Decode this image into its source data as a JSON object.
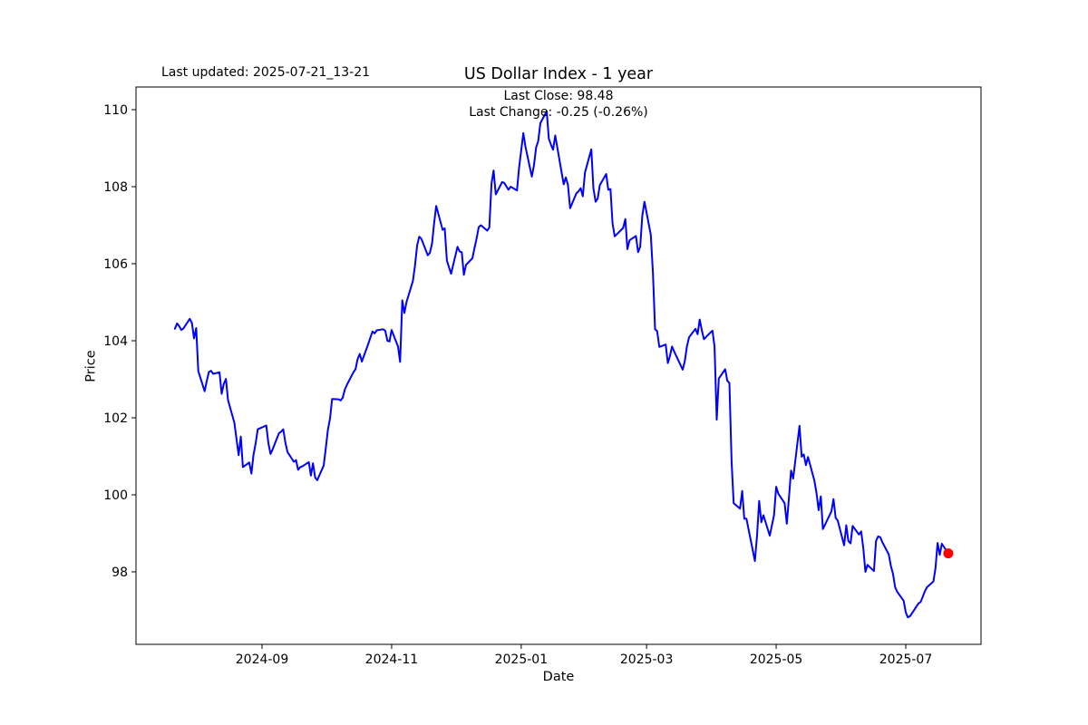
{
  "figure": {
    "background": "#ffffff",
    "text_color": "#000000",
    "title": "US Dollar Index - 1 year",
    "last_updated_label": "Last updated: 2025-07-21_13-21",
    "annotation_line1": "Last Close: 98.48",
    "annotation_line2": "Last Change: -0.25 (-0.26%)",
    "xlabel": "Date",
    "ylabel": "Price"
  },
  "chart_data": {
    "type": "line",
    "title": "US Dollar Index - 1 year",
    "xlabel": "Date",
    "ylabel": "Price",
    "series_name": "US Dollar Index",
    "line_color": "#0000ff",
    "marker_color": "#ff0000",
    "last_close": 98.48,
    "last_change": -0.25,
    "last_change_pct": "-0.26%",
    "grid": false,
    "legend_position": "none",
    "x_ticks": [
      "2024-09",
      "2024-11",
      "2025-01",
      "2025-03",
      "2025-05",
      "2025-07"
    ],
    "y_ticks": [
      98,
      100,
      102,
      104,
      106,
      108,
      110
    ],
    "ylim": [
      96.1,
      110.6
    ],
    "xlim": [
      "2024-07-04",
      "2025-08-05"
    ],
    "points": [
      [
        "2024-07-22",
        104.31
      ],
      [
        "2024-07-23",
        104.45
      ],
      [
        "2024-07-24",
        104.38
      ],
      [
        "2024-07-25",
        104.28
      ],
      [
        "2024-07-26",
        104.32
      ],
      [
        "2024-07-29",
        104.57
      ],
      [
        "2024-07-30",
        104.46
      ],
      [
        "2024-07-31",
        104.06
      ],
      [
        "2024-08-01",
        104.33
      ],
      [
        "2024-08-02",
        103.21
      ],
      [
        "2024-08-05",
        102.69
      ],
      [
        "2024-08-06",
        102.96
      ],
      [
        "2024-08-07",
        103.19
      ],
      [
        "2024-08-08",
        103.22
      ],
      [
        "2024-08-09",
        103.14
      ],
      [
        "2024-08-12",
        103.18
      ],
      [
        "2024-08-13",
        102.62
      ],
      [
        "2024-08-14",
        102.88
      ],
      [
        "2024-08-15",
        103.01
      ],
      [
        "2024-08-16",
        102.46
      ],
      [
        "2024-08-19",
        101.87
      ],
      [
        "2024-08-20",
        101.44
      ],
      [
        "2024-08-21",
        101.03
      ],
      [
        "2024-08-22",
        101.51
      ],
      [
        "2024-08-23",
        100.72
      ],
      [
        "2024-08-26",
        100.84
      ],
      [
        "2024-08-27",
        100.55
      ],
      [
        "2024-08-28",
        101.04
      ],
      [
        "2024-08-29",
        101.34
      ],
      [
        "2024-08-30",
        101.7
      ],
      [
        "2024-09-03",
        101.8
      ],
      [
        "2024-09-04",
        101.34
      ],
      [
        "2024-09-05",
        101.06
      ],
      [
        "2024-09-06",
        101.18
      ],
      [
        "2024-09-09",
        101.6
      ],
      [
        "2024-09-10",
        101.64
      ],
      [
        "2024-09-11",
        101.7
      ],
      [
        "2024-09-12",
        101.35
      ],
      [
        "2024-09-13",
        101.11
      ],
      [
        "2024-09-16",
        100.86
      ],
      [
        "2024-09-17",
        100.9
      ],
      [
        "2024-09-18",
        100.65
      ],
      [
        "2024-09-19",
        100.72
      ],
      [
        "2024-09-20",
        100.74
      ],
      [
        "2024-09-23",
        100.85
      ],
      [
        "2024-09-24",
        100.5
      ],
      [
        "2024-09-25",
        100.82
      ],
      [
        "2024-09-26",
        100.45
      ],
      [
        "2024-09-27",
        100.38
      ],
      [
        "2024-09-30",
        100.76
      ],
      [
        "2024-10-01",
        101.2
      ],
      [
        "2024-10-02",
        101.68
      ],
      [
        "2024-10-03",
        101.98
      ],
      [
        "2024-10-04",
        102.49
      ],
      [
        "2024-10-07",
        102.48
      ],
      [
        "2024-10-08",
        102.45
      ],
      [
        "2024-10-09",
        102.52
      ],
      [
        "2024-10-10",
        102.74
      ],
      [
        "2024-10-11",
        102.86
      ],
      [
        "2024-10-14",
        103.18
      ],
      [
        "2024-10-15",
        103.26
      ],
      [
        "2024-10-16",
        103.52
      ],
      [
        "2024-10-17",
        103.66
      ],
      [
        "2024-10-18",
        103.46
      ],
      [
        "2024-10-21",
        103.92
      ],
      [
        "2024-10-22",
        104.08
      ],
      [
        "2024-10-23",
        104.24
      ],
      [
        "2024-10-24",
        104.19
      ],
      [
        "2024-10-25",
        104.27
      ],
      [
        "2024-10-28",
        104.3
      ],
      [
        "2024-10-29",
        104.26
      ],
      [
        "2024-10-30",
        104.0
      ],
      [
        "2024-10-31",
        103.98
      ],
      [
        "2024-11-01",
        104.28
      ],
      [
        "2024-11-04",
        103.85
      ],
      [
        "2024-11-05",
        103.45
      ],
      [
        "2024-11-06",
        105.05
      ],
      [
        "2024-11-07",
        104.72
      ],
      [
        "2024-11-08",
        105.0
      ],
      [
        "2024-11-11",
        105.55
      ],
      [
        "2024-11-12",
        105.95
      ],
      [
        "2024-11-13",
        106.48
      ],
      [
        "2024-11-14",
        106.7
      ],
      [
        "2024-11-15",
        106.65
      ],
      [
        "2024-11-18",
        106.22
      ],
      [
        "2024-11-19",
        106.28
      ],
      [
        "2024-11-20",
        106.52
      ],
      [
        "2024-11-21",
        107.05
      ],
      [
        "2024-11-22",
        107.5
      ],
      [
        "2024-11-25",
        106.88
      ],
      [
        "2024-11-26",
        106.92
      ],
      [
        "2024-11-27",
        106.08
      ],
      [
        "2024-11-29",
        105.74
      ],
      [
        "2024-12-02",
        106.44
      ],
      [
        "2024-12-03",
        106.32
      ],
      [
        "2024-12-04",
        106.3
      ],
      [
        "2024-12-05",
        105.71
      ],
      [
        "2024-12-06",
        105.97
      ],
      [
        "2024-12-09",
        106.14
      ],
      [
        "2024-12-10",
        106.4
      ],
      [
        "2024-12-11",
        106.66
      ],
      [
        "2024-12-12",
        106.95
      ],
      [
        "2024-12-13",
        107.0
      ],
      [
        "2024-12-16",
        106.86
      ],
      [
        "2024-12-17",
        106.94
      ],
      [
        "2024-12-18",
        108.08
      ],
      [
        "2024-12-19",
        108.42
      ],
      [
        "2024-12-20",
        107.8
      ],
      [
        "2024-12-23",
        108.12
      ],
      [
        "2024-12-24",
        108.1
      ],
      [
        "2024-12-26",
        107.92
      ],
      [
        "2024-12-27",
        108.0
      ],
      [
        "2024-12-30",
        107.9
      ],
      [
        "2024-12-31",
        108.49
      ],
      [
        "2025-01-02",
        109.39
      ],
      [
        "2025-01-03",
        109.03
      ],
      [
        "2025-01-06",
        108.26
      ],
      [
        "2025-01-07",
        108.55
      ],
      [
        "2025-01-08",
        109.02
      ],
      [
        "2025-01-09",
        109.18
      ],
      [
        "2025-01-10",
        109.65
      ],
      [
        "2025-01-13",
        109.96
      ],
      [
        "2025-01-14",
        109.25
      ],
      [
        "2025-01-15",
        109.09
      ],
      [
        "2025-01-16",
        108.96
      ],
      [
        "2025-01-17",
        109.33
      ],
      [
        "2025-01-21",
        108.06
      ],
      [
        "2025-01-22",
        108.24
      ],
      [
        "2025-01-23",
        108.05
      ],
      [
        "2025-01-24",
        107.44
      ],
      [
        "2025-01-27",
        107.83
      ],
      [
        "2025-01-28",
        107.88
      ],
      [
        "2025-01-29",
        107.96
      ],
      [
        "2025-01-30",
        107.75
      ],
      [
        "2025-01-31",
        108.37
      ],
      [
        "2025-02-03",
        108.97
      ],
      [
        "2025-02-04",
        107.96
      ],
      [
        "2025-02-05",
        107.61
      ],
      [
        "2025-02-06",
        107.69
      ],
      [
        "2025-02-07",
        108.04
      ],
      [
        "2025-02-10",
        108.33
      ],
      [
        "2025-02-11",
        107.92
      ],
      [
        "2025-02-12",
        107.94
      ],
      [
        "2025-02-13",
        107.05
      ],
      [
        "2025-02-14",
        106.71
      ],
      [
        "2025-02-18",
        106.93
      ],
      [
        "2025-02-19",
        107.16
      ],
      [
        "2025-02-20",
        106.38
      ],
      [
        "2025-02-21",
        106.61
      ],
      [
        "2025-02-24",
        106.72
      ],
      [
        "2025-02-25",
        106.3
      ],
      [
        "2025-02-26",
        106.44
      ],
      [
        "2025-02-27",
        107.24
      ],
      [
        "2025-02-28",
        107.61
      ],
      [
        "2025-03-03",
        106.75
      ],
      [
        "2025-03-04",
        105.74
      ],
      [
        "2025-03-05",
        104.3
      ],
      [
        "2025-03-06",
        104.25
      ],
      [
        "2025-03-07",
        103.84
      ],
      [
        "2025-03-10",
        103.9
      ],
      [
        "2025-03-11",
        103.42
      ],
      [
        "2025-03-12",
        103.6
      ],
      [
        "2025-03-13",
        103.85
      ],
      [
        "2025-03-14",
        103.72
      ],
      [
        "2025-03-17",
        103.37
      ],
      [
        "2025-03-18",
        103.25
      ],
      [
        "2025-03-19",
        103.47
      ],
      [
        "2025-03-20",
        103.85
      ],
      [
        "2025-03-21",
        104.09
      ],
      [
        "2025-03-24",
        104.31
      ],
      [
        "2025-03-25",
        104.17
      ],
      [
        "2025-03-26",
        104.55
      ],
      [
        "2025-03-27",
        104.28
      ],
      [
        "2025-03-28",
        104.04
      ],
      [
        "2025-03-31",
        104.21
      ],
      [
        "2025-04-01",
        104.26
      ],
      [
        "2025-04-02",
        103.85
      ],
      [
        "2025-04-03",
        101.95
      ],
      [
        "2025-04-04",
        103.02
      ],
      [
        "2025-04-07",
        103.26
      ],
      [
        "2025-04-08",
        102.96
      ],
      [
        "2025-04-09",
        102.9
      ],
      [
        "2025-04-10",
        100.87
      ],
      [
        "2025-04-11",
        99.78
      ],
      [
        "2025-04-14",
        99.64
      ],
      [
        "2025-04-15",
        100.1
      ],
      [
        "2025-04-16",
        99.38
      ],
      [
        "2025-04-17",
        99.38
      ],
      [
        "2025-04-21",
        98.28
      ],
      [
        "2025-04-22",
        98.95
      ],
      [
        "2025-04-23",
        99.84
      ],
      [
        "2025-04-24",
        99.29
      ],
      [
        "2025-04-25",
        99.47
      ],
      [
        "2025-04-28",
        98.94
      ],
      [
        "2025-04-29",
        99.21
      ],
      [
        "2025-04-30",
        99.47
      ],
      [
        "2025-05-01",
        100.21
      ],
      [
        "2025-05-02",
        100.03
      ],
      [
        "2025-05-05",
        99.78
      ],
      [
        "2025-05-06",
        99.25
      ],
      [
        "2025-05-07",
        99.9
      ],
      [
        "2025-05-08",
        100.63
      ],
      [
        "2025-05-09",
        100.42
      ],
      [
        "2025-05-12",
        101.79
      ],
      [
        "2025-05-13",
        100.99
      ],
      [
        "2025-05-14",
        101.05
      ],
      [
        "2025-05-15",
        100.77
      ],
      [
        "2025-05-16",
        100.98
      ],
      [
        "2025-05-19",
        100.37
      ],
      [
        "2025-05-20",
        100.04
      ],
      [
        "2025-05-21",
        99.6
      ],
      [
        "2025-05-22",
        99.96
      ],
      [
        "2025-05-23",
        99.11
      ],
      [
        "2025-05-27",
        99.57
      ],
      [
        "2025-05-28",
        99.89
      ],
      [
        "2025-05-29",
        99.4
      ],
      [
        "2025-05-30",
        99.33
      ],
      [
        "2025-06-02",
        98.69
      ],
      [
        "2025-06-03",
        99.21
      ],
      [
        "2025-06-04",
        98.8
      ],
      [
        "2025-06-05",
        98.74
      ],
      [
        "2025-06-06",
        99.19
      ],
      [
        "2025-06-09",
        98.97
      ],
      [
        "2025-06-10",
        99.05
      ],
      [
        "2025-06-11",
        98.63
      ],
      [
        "2025-06-12",
        98.0
      ],
      [
        "2025-06-13",
        98.18
      ],
      [
        "2025-06-16",
        98.02
      ],
      [
        "2025-06-17",
        98.8
      ],
      [
        "2025-06-18",
        98.92
      ],
      [
        "2025-06-19",
        98.9
      ],
      [
        "2025-06-20",
        98.77
      ],
      [
        "2025-06-23",
        98.45
      ],
      [
        "2025-06-24",
        98.15
      ],
      [
        "2025-06-25",
        97.95
      ],
      [
        "2025-06-26",
        97.6
      ],
      [
        "2025-06-27",
        97.48
      ],
      [
        "2025-06-30",
        97.25
      ],
      [
        "2025-07-01",
        96.95
      ],
      [
        "2025-07-02",
        96.82
      ],
      [
        "2025-07-03",
        96.85
      ],
      [
        "2025-07-07",
        97.18
      ],
      [
        "2025-07-08",
        97.22
      ],
      [
        "2025-07-09",
        97.35
      ],
      [
        "2025-07-10",
        97.5
      ],
      [
        "2025-07-11",
        97.6
      ],
      [
        "2025-07-14",
        97.75
      ],
      [
        "2025-07-15",
        98.1
      ],
      [
        "2025-07-16",
        98.75
      ],
      [
        "2025-07-17",
        98.44
      ],
      [
        "2025-07-18",
        98.73
      ],
      [
        "2025-07-21",
        98.48
      ]
    ]
  }
}
